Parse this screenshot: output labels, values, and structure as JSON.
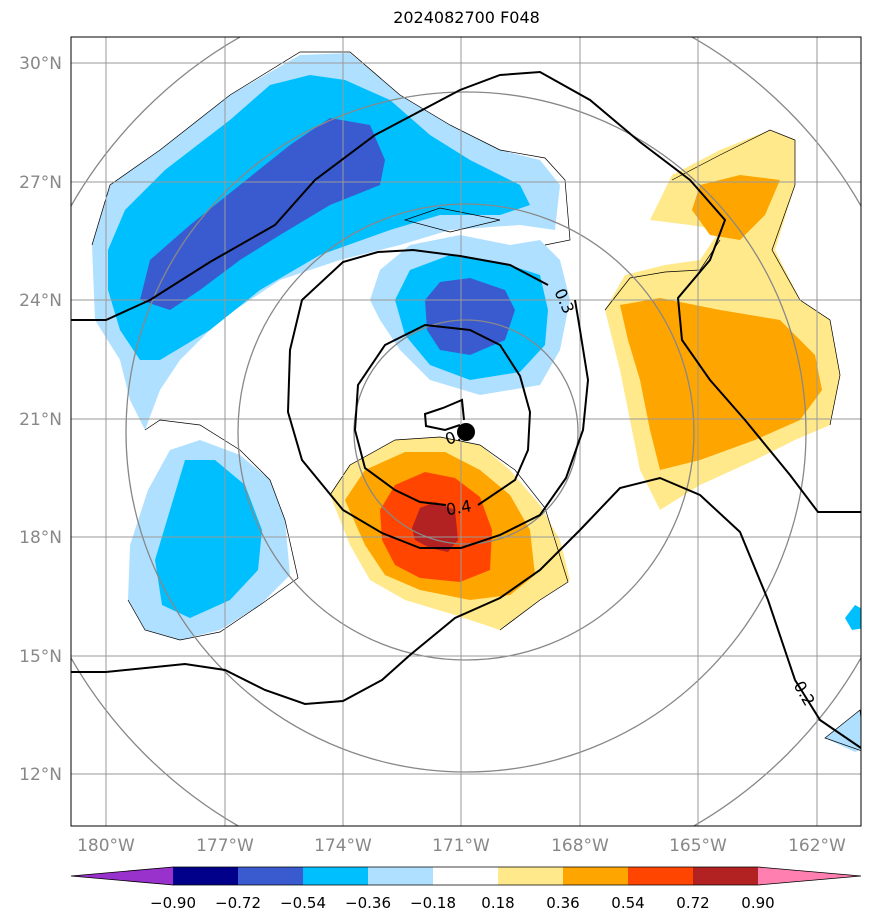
{
  "title": "2024082700 F048",
  "map": {
    "lon_ticks": [
      "180°W",
      "177°W",
      "174°W",
      "171°W",
      "168°W",
      "165°W",
      "162°W"
    ],
    "lat_ticks": [
      "30°N",
      "27°N",
      "24°N",
      "21°N",
      "18°N",
      "15°N",
      "12°N"
    ],
    "contour_labels": [
      "0.3",
      "0.4",
      "0.2",
      "0."
    ],
    "marker": "storm-center"
  },
  "colorbar": {
    "labels": [
      "−0.90",
      "−0.72",
      "−0.54",
      "−0.36",
      "−0.18",
      "0.18",
      "0.36",
      "0.54",
      "0.72",
      "0.90"
    ],
    "colors": [
      "#9932cc",
      "#00008b",
      "#3a5bd0",
      "#00bfff",
      "#b0e0ff",
      "#ffffff",
      "#ffe98a",
      "#ffa500",
      "#ff4500",
      "#b22222",
      "#ff80b0"
    ]
  },
  "fill_colors": {
    "light_blue": "#b0e0ff",
    "blue": "#00bfff",
    "royal_blue": "#3a5bd0",
    "light_yellow": "#ffe98a",
    "orange": "#ffa500",
    "red_orange": "#ff4500",
    "dark_red": "#b22222"
  }
}
